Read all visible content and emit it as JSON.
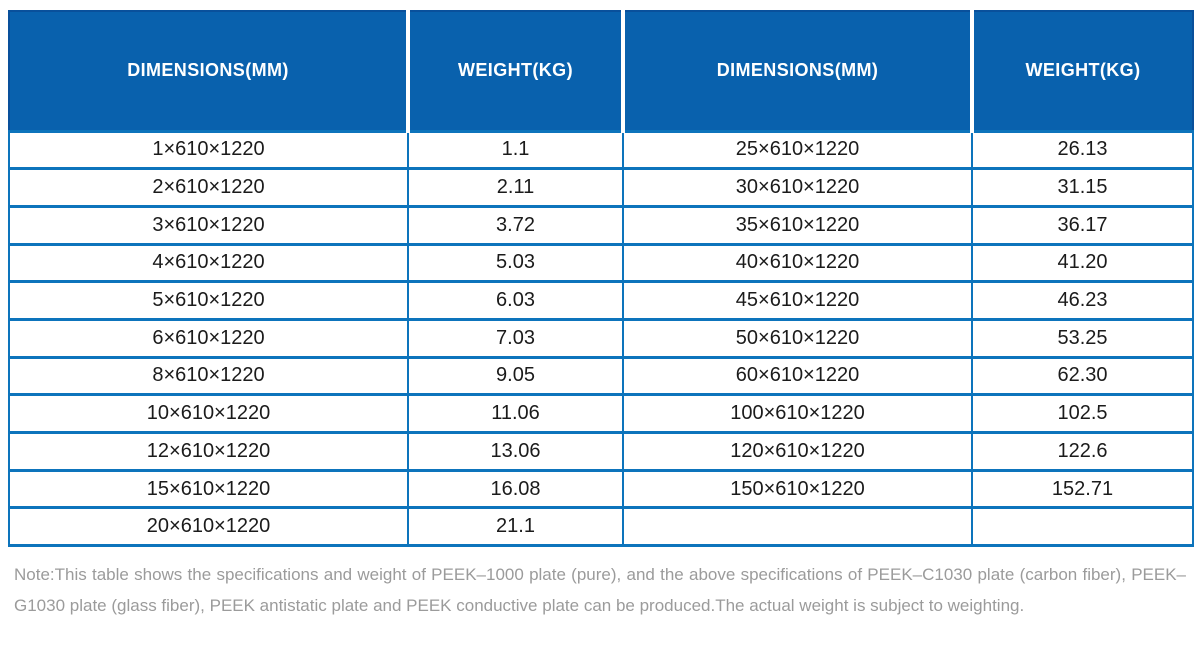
{
  "table": {
    "headers": [
      {
        "label": "DIMENSIONS(MM)"
      },
      {
        "label": "WEIGHT(KG)"
      },
      {
        "label": "DIMENSIONS(MM)"
      },
      {
        "label": "WEIGHT(KG)"
      }
    ],
    "rows": [
      [
        "1×610×1220",
        "1.1",
        "25×610×1220",
        "26.13"
      ],
      [
        "2×610×1220",
        "2.11",
        "30×610×1220",
        "31.15"
      ],
      [
        "3×610×1220",
        "3.72",
        "35×610×1220",
        "36.17"
      ],
      [
        "4×610×1220",
        "5.03",
        "40×610×1220",
        "41.20"
      ],
      [
        "5×610×1220",
        "6.03",
        "45×610×1220",
        "46.23"
      ],
      [
        "6×610×1220",
        "7.03",
        "50×610×1220",
        "53.25"
      ],
      [
        "8×610×1220",
        "9.05",
        "60×610×1220",
        "62.30"
      ],
      [
        "10×610×1220",
        "11.06",
        "100×610×1220",
        "102.5"
      ],
      [
        "12×610×1220",
        "13.06",
        "120×610×1220",
        "122.6"
      ],
      [
        "15×610×1220",
        "16.08",
        "150×610×1220",
        "152.71"
      ],
      [
        "20×610×1220",
        "21.1",
        "",
        ""
      ]
    ]
  },
  "note": "Note:This table shows the specifications and weight of PEEK–1000 plate (pure), and the above specifications of PEEK–C1030 plate (carbon fiber), PEEK–G1030 plate (glass fiber), PEEK antistatic plate and PEEK conductive plate can be produced.The actual weight is subject to weighting.",
  "colors": {
    "header_bg": "#0961ad",
    "header_outline": "#09509b",
    "border": "#0d74bc",
    "header_text": "#ffffff",
    "body_text": "#1b1b1b",
    "note_text": "#9b9b9b",
    "page_bg": "#ffffff"
  }
}
